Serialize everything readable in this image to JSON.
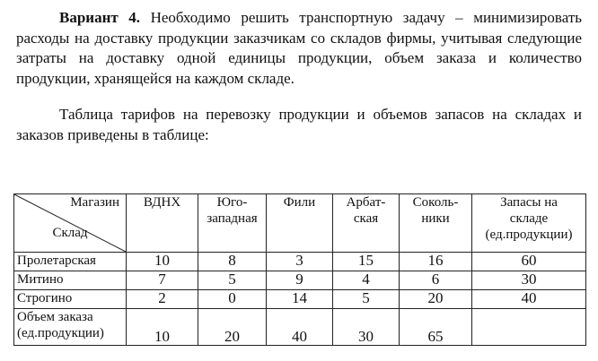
{
  "intro": {
    "bold": "Вариант 4.",
    "text": " Необходимо решить транспортную задачу – минимизировать расходы на доставку продукции заказчикам со складов фирмы, учитывая следующие затраты на доставку одной единицы продукции, объем заказа и количество продукции, хранящейся на каждом складе."
  },
  "caption": "Таблица тарифов на перевозку продукции и объемов запасов на складах и заказов приведены в таблице:",
  "table": {
    "corner_top": "Магазин",
    "corner_bottom": "Склад",
    "columns": [
      "ВДНХ",
      "Юго-западная",
      "Фили",
      "Арбат-ская",
      "Соколь-ники",
      "Запасы на складе (ед.продукции)"
    ],
    "rows": [
      {
        "label": "Пролетарская",
        "values": [
          "10",
          "8",
          "3",
          "15",
          "16",
          "60"
        ]
      },
      {
        "label": "Митино",
        "values": [
          "7",
          "5",
          "9",
          "4",
          "6",
          "30"
        ]
      },
      {
        "label": "Строгино",
        "values": [
          "2",
          "0",
          "14",
          "5",
          "20",
          "40"
        ]
      }
    ],
    "demand": {
      "label": "Объем заказа (ед.продукции)",
      "values": [
        "10",
        "20",
        "40",
        "30",
        "65",
        ""
      ]
    }
  }
}
